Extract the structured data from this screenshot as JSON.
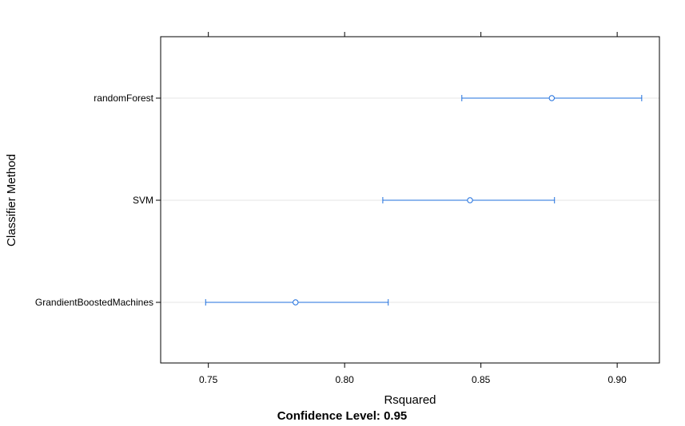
{
  "chart_data": {
    "type": "dotplot-errorbar",
    "categories": [
      "randomForest",
      "SVM",
      "GrandientBoostedMachines"
    ],
    "estimates": [
      0.876,
      0.846,
      0.782
    ],
    "lower": [
      0.843,
      0.814,
      0.749
    ],
    "upper": [
      0.909,
      0.877,
      0.816
    ],
    "xlabel": "Rsquared",
    "ylabel": "Classifier Method",
    "xticks": [
      0.75,
      0.8,
      0.85,
      0.9
    ],
    "xtick_labels": [
      "0.75",
      "0.80",
      "0.85",
      "0.90"
    ],
    "xlim": [
      0.7325,
      0.9155
    ],
    "footer": "Confidence Level: 0.95",
    "grid": true,
    "colors": {
      "series": "#1f6fdd",
      "grid": "#e6e6e6",
      "axis": "#000000"
    }
  }
}
